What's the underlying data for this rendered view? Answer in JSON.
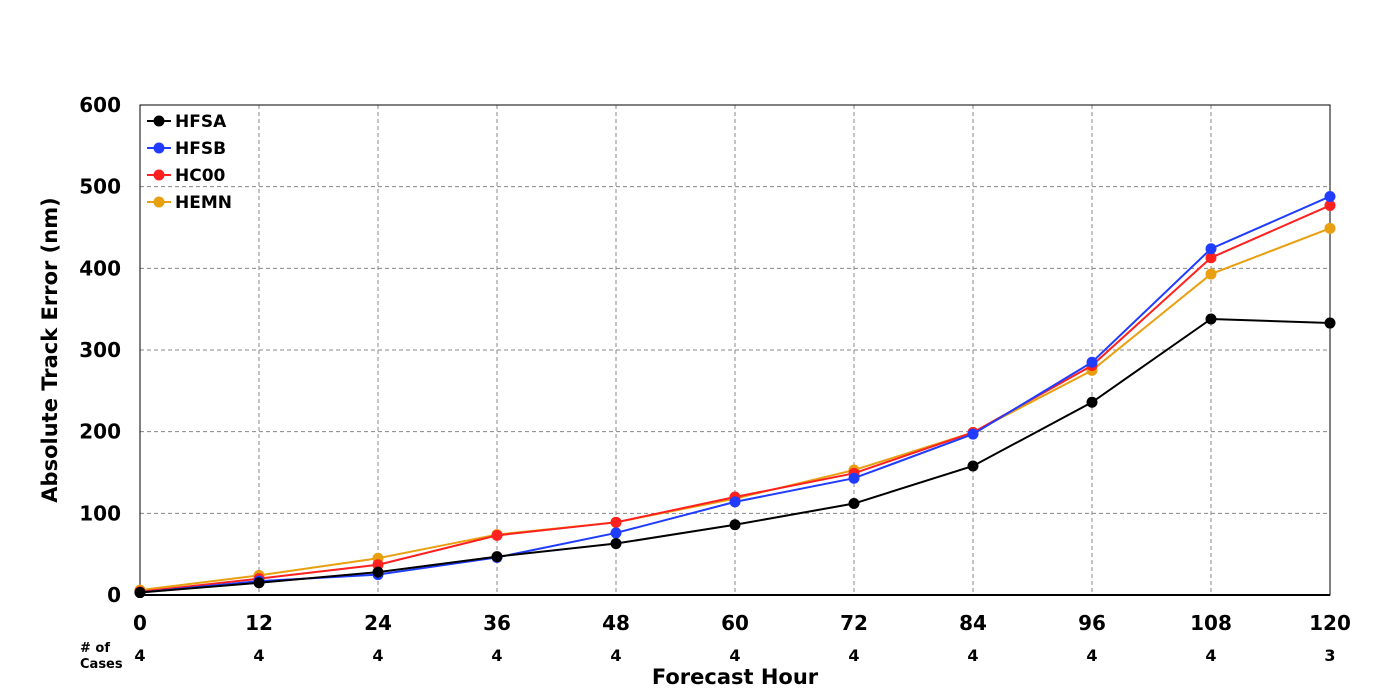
{
  "chart_data": {
    "type": "line",
    "xlabel": "Forecast Hour",
    "ylabel": "Absolute Track Error (nm)",
    "x": [
      0,
      12,
      24,
      36,
      48,
      60,
      72,
      84,
      96,
      108,
      120
    ],
    "xticks": [
      "0",
      "12",
      "24",
      "36",
      "48",
      "60",
      "72",
      "84",
      "96",
      "108",
      "120"
    ],
    "ylim": [
      0,
      600
    ],
    "yticks": [
      "0",
      "100",
      "200",
      "300",
      "400",
      "500",
      "600"
    ],
    "grid": true,
    "legend_position": "top-left",
    "series": [
      {
        "name": "HFSA",
        "color": "#000000",
        "values": [
          3,
          15,
          28,
          47,
          63,
          86,
          112,
          158,
          236,
          338,
          333
        ]
      },
      {
        "name": "HFSB",
        "color": "#1f3cff",
        "values": [
          3,
          17,
          25,
          46,
          76,
          114,
          143,
          197,
          285,
          424,
          488
        ]
      },
      {
        "name": "HC00",
        "color": "#ff2020",
        "values": [
          4,
          20,
          37,
          73,
          89,
          120,
          149,
          199,
          281,
          413,
          477
        ]
      },
      {
        "name": "HEMN",
        "color": "#e8a010",
        "values": [
          6,
          24,
          45,
          74,
          89,
          118,
          153,
          199,
          275,
          393,
          449
        ]
      }
    ],
    "cases_label_line1": "# of",
    "cases_label_line2": "Cases",
    "cases": [
      "4",
      "4",
      "4",
      "4",
      "4",
      "4",
      "4",
      "4",
      "4",
      "4",
      "3"
    ]
  }
}
